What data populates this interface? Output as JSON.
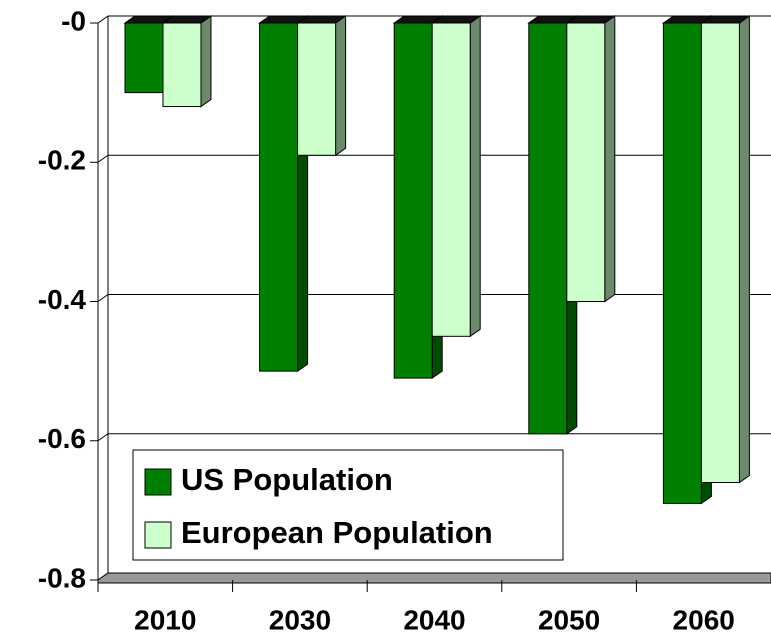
{
  "chart_data": {
    "type": "bar3d",
    "categories": [
      "2010",
      "2030",
      "2040",
      "2050",
      "2060"
    ],
    "series": [
      {
        "name": "US Population",
        "color": "#008000",
        "side_color": "#004d00",
        "values": [
          -0.1,
          -0.5,
          -0.51,
          -0.59,
          -0.69
        ]
      },
      {
        "name": "European Population",
        "color": "#ccffcc",
        "side_color": "#6b8a6b",
        "values": [
          -0.12,
          -0.19,
          -0.45,
          -0.4,
          -0.66
        ]
      }
    ],
    "ylim": [
      0,
      -0.8
    ],
    "yticks": [
      {
        "value": 0,
        "label": "-0"
      },
      -0.2,
      -0.4,
      -0.6,
      -0.8
    ],
    "grid": true,
    "legend": "lower left"
  }
}
